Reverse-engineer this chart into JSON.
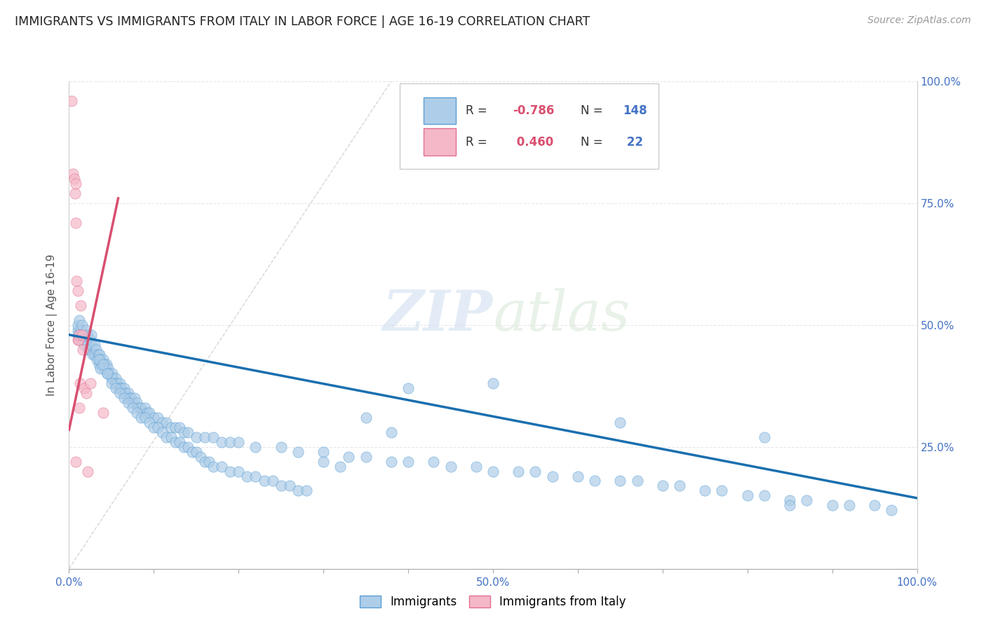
{
  "title": "IMMIGRANTS VS IMMIGRANTS FROM ITALY IN LABOR FORCE | AGE 16-19 CORRELATION CHART",
  "source": "Source: ZipAtlas.com",
  "ylabel": "In Labor Force | Age 16-19",
  "xlim": [
    0.0,
    1.0
  ],
  "ylim": [
    0.0,
    1.0
  ],
  "watermark_zip": "ZIP",
  "watermark_atlas": "atlas",
  "blue_scatter_color": "#aecde8",
  "blue_edge_color": "#5a9fd4",
  "pink_scatter_color": "#f5b8c8",
  "pink_edge_color": "#e07090",
  "blue_line_color": "#1a6faf",
  "pink_line_color": "#d94f70",
  "dashed_color": "#cccccc",
  "grid_color": "#e8e8e8",
  "right_tick_color": "#4472c4",
  "immigrants_x": [
    0.01,
    0.01,
    0.01,
    0.012,
    0.012,
    0.014,
    0.015,
    0.015,
    0.016,
    0.018,
    0.02,
    0.02,
    0.022,
    0.022,
    0.023,
    0.025,
    0.025,
    0.026,
    0.027,
    0.028,
    0.03,
    0.03,
    0.032,
    0.033,
    0.034,
    0.035,
    0.036,
    0.037,
    0.038,
    0.04,
    0.04,
    0.042,
    0.043,
    0.044,
    0.045,
    0.046,
    0.048,
    0.05,
    0.051,
    0.052,
    0.054,
    0.055,
    0.056,
    0.057,
    0.058,
    0.06,
    0.061,
    0.062,
    0.064,
    0.065,
    0.067,
    0.068,
    0.07,
    0.072,
    0.073,
    0.075,
    0.077,
    0.08,
    0.082,
    0.085,
    0.087,
    0.09,
    0.092,
    0.095,
    0.1,
    0.105,
    0.11,
    0.115,
    0.12,
    0.125,
    0.13,
    0.135,
    0.14,
    0.15,
    0.16,
    0.17,
    0.18,
    0.19,
    0.2,
    0.22,
    0.25,
    0.27,
    0.3,
    0.33,
    0.35,
    0.38,
    0.4,
    0.43,
    0.45,
    0.48,
    0.5,
    0.53,
    0.55,
    0.57,
    0.6,
    0.62,
    0.65,
    0.67,
    0.7,
    0.72,
    0.75,
    0.77,
    0.8,
    0.82,
    0.85,
    0.87,
    0.9,
    0.92,
    0.95,
    0.97,
    0.035,
    0.037,
    0.04,
    0.045,
    0.05,
    0.055,
    0.06,
    0.065,
    0.07,
    0.075,
    0.08,
    0.085,
    0.09,
    0.095,
    0.1,
    0.105,
    0.11,
    0.115,
    0.12,
    0.125,
    0.13,
    0.135,
    0.14,
    0.145,
    0.15,
    0.155,
    0.16,
    0.165,
    0.17,
    0.18,
    0.19,
    0.2,
    0.21,
    0.22,
    0.23,
    0.24,
    0.25,
    0.26,
    0.27,
    0.28,
    0.3,
    0.32,
    0.35,
    0.38,
    0.82,
    0.85,
    0.65,
    0.4,
    0.5
  ],
  "immigrants_y": [
    0.49,
    0.5,
    0.48,
    0.51,
    0.47,
    0.49,
    0.48,
    0.5,
    0.47,
    0.46,
    0.49,
    0.47,
    0.46,
    0.48,
    0.45,
    0.47,
    0.45,
    0.48,
    0.46,
    0.44,
    0.46,
    0.44,
    0.45,
    0.43,
    0.44,
    0.42,
    0.44,
    0.43,
    0.42,
    0.43,
    0.41,
    0.42,
    0.41,
    0.42,
    0.4,
    0.41,
    0.4,
    0.39,
    0.4,
    0.39,
    0.38,
    0.39,
    0.38,
    0.38,
    0.37,
    0.38,
    0.37,
    0.37,
    0.36,
    0.37,
    0.36,
    0.35,
    0.36,
    0.35,
    0.35,
    0.34,
    0.35,
    0.34,
    0.33,
    0.33,
    0.32,
    0.33,
    0.32,
    0.32,
    0.31,
    0.31,
    0.3,
    0.3,
    0.29,
    0.29,
    0.29,
    0.28,
    0.28,
    0.27,
    0.27,
    0.27,
    0.26,
    0.26,
    0.26,
    0.25,
    0.25,
    0.24,
    0.24,
    0.23,
    0.23,
    0.22,
    0.22,
    0.22,
    0.21,
    0.21,
    0.2,
    0.2,
    0.2,
    0.19,
    0.19,
    0.18,
    0.18,
    0.18,
    0.17,
    0.17,
    0.16,
    0.16,
    0.15,
    0.15,
    0.14,
    0.14,
    0.13,
    0.13,
    0.13,
    0.12,
    0.43,
    0.41,
    0.42,
    0.4,
    0.38,
    0.37,
    0.36,
    0.35,
    0.34,
    0.33,
    0.32,
    0.31,
    0.31,
    0.3,
    0.29,
    0.29,
    0.28,
    0.27,
    0.27,
    0.26,
    0.26,
    0.25,
    0.25,
    0.24,
    0.24,
    0.23,
    0.22,
    0.22,
    0.21,
    0.21,
    0.2,
    0.2,
    0.19,
    0.19,
    0.18,
    0.18,
    0.17,
    0.17,
    0.16,
    0.16,
    0.22,
    0.21,
    0.31,
    0.28,
    0.27,
    0.13,
    0.3,
    0.37,
    0.38
  ],
  "italy_x": [
    0.003,
    0.005,
    0.006,
    0.007,
    0.008,
    0.008,
    0.009,
    0.01,
    0.01,
    0.011,
    0.012,
    0.012,
    0.013,
    0.014,
    0.015,
    0.016,
    0.018,
    0.02,
    0.022,
    0.025,
    0.04,
    0.008
  ],
  "italy_y": [
    0.96,
    0.81,
    0.8,
    0.77,
    0.71,
    0.79,
    0.59,
    0.57,
    0.47,
    0.47,
    0.48,
    0.33,
    0.38,
    0.54,
    0.48,
    0.45,
    0.37,
    0.36,
    0.2,
    0.38,
    0.32,
    0.22
  ],
  "blue_line_x": [
    0.0,
    1.0
  ],
  "blue_line_y": [
    0.48,
    0.145
  ],
  "pink_line_x": [
    0.0,
    0.058
  ],
  "pink_line_y": [
    0.285,
    0.76
  ],
  "dashed_line_x": [
    0.0,
    0.38
  ],
  "dashed_line_y": [
    0.0,
    1.0
  ]
}
